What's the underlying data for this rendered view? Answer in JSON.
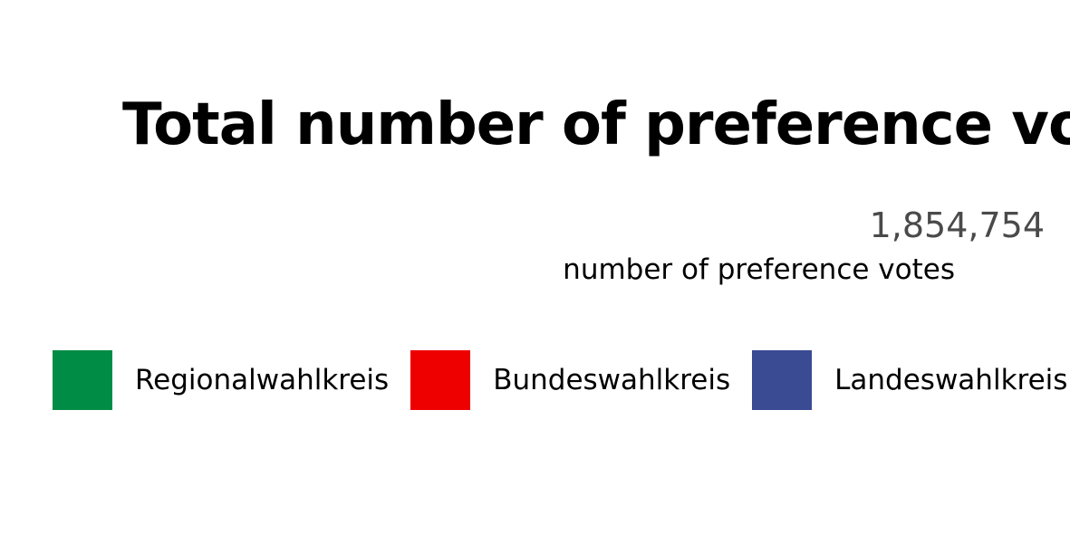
{
  "chart_data": {
    "type": "pie",
    "title": "Total number of preference votes",
    "total": {
      "value": "1,854,754",
      "label": "number of preference votes"
    },
    "legend": [
      {
        "name": "Regionalwahlkreis",
        "color": "#008c45"
      },
      {
        "name": "Bundeswahlkreis",
        "color": "#ee0000"
      },
      {
        "name": "Landeswahlkreis",
        "color": "#3a4a93"
      }
    ],
    "legend_placement": "bottom"
  }
}
